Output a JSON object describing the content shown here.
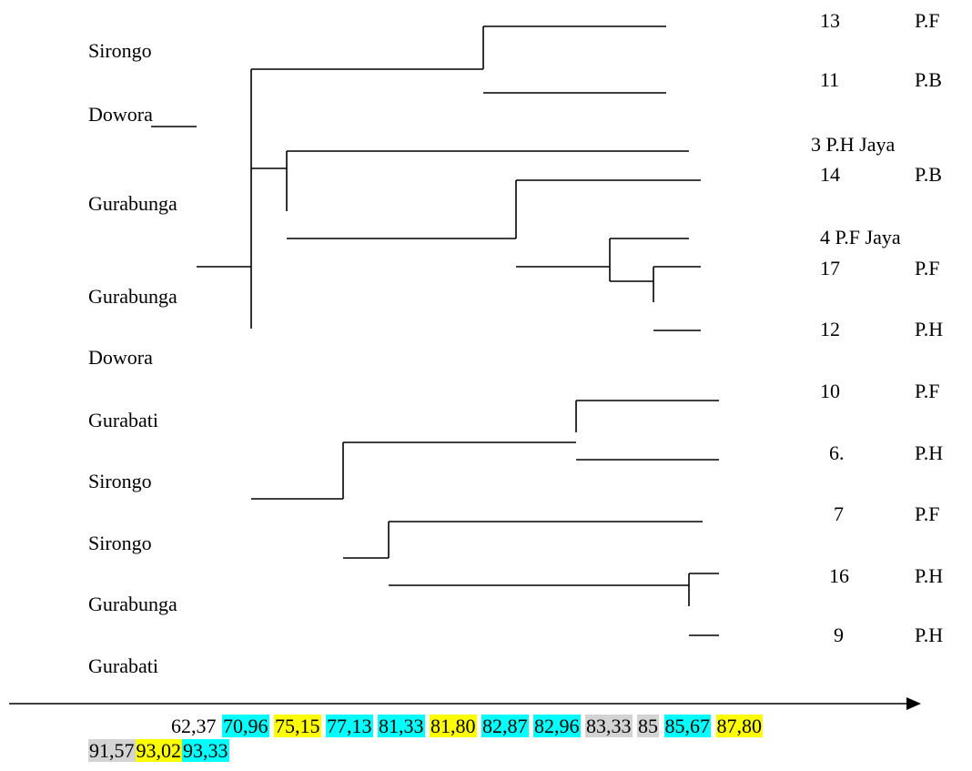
{
  "labels": [
    "Sirongo",
    "Dowora",
    "Gurabunga",
    "Gurabunga",
    "Dowora",
    "Gurabati",
    "Sirongo",
    "Sirongo",
    "Gurabunga",
    "Gurabati"
  ],
  "samples": [
    {
      "num": "13",
      "code": "P.F"
    },
    {
      "num": "11",
      "code": "P.B"
    },
    {
      "num": "3 P.H Jaya",
      "code": ""
    },
    {
      "num": "14",
      "code": "P.B"
    },
    {
      "num": "4 P.F Jaya",
      "code": ""
    },
    {
      "num": "17",
      "code": "P.F"
    },
    {
      "num": "12",
      "code": "P.H"
    },
    {
      "num": "10",
      "code": "P.F"
    },
    {
      "num": "6.",
      "code": "P.H"
    },
    {
      "num": "7",
      "code": "P.F"
    },
    {
      "num": "16",
      "code": "P.H"
    },
    {
      "num": "9",
      "code": "P.H"
    }
  ],
  "scale_values": [
    {
      "text": "62,37",
      "highlight": "none"
    },
    {
      "text": "70,96",
      "highlight": "#00ffff"
    },
    {
      "text": "75,15",
      "highlight": "#ffff00"
    },
    {
      "text": "77,13",
      "highlight": "#00ffff"
    },
    {
      "text": "81,33",
      "highlight": "#00ffff"
    },
    {
      "text": "81,80",
      "highlight": "#ffff00"
    },
    {
      "text": "82,87",
      "highlight": "#00ffff"
    },
    {
      "text": "82,96",
      "highlight": "#00ffff"
    },
    {
      "text": "83,33",
      "highlight": "#d3d3d3"
    },
    {
      "text": "85",
      "highlight": "#d3d3d3"
    },
    {
      "text": "85,67",
      "highlight": "#00ffff"
    },
    {
      "text": "87,80",
      "highlight": "#ffff00"
    },
    {
      "text": "91,57",
      "highlight": "#d3d3d3"
    },
    {
      "text": "93,02",
      "highlight": "#ffff00"
    },
    {
      "text": "93,33",
      "highlight": "#00ffff"
    }
  ]
}
